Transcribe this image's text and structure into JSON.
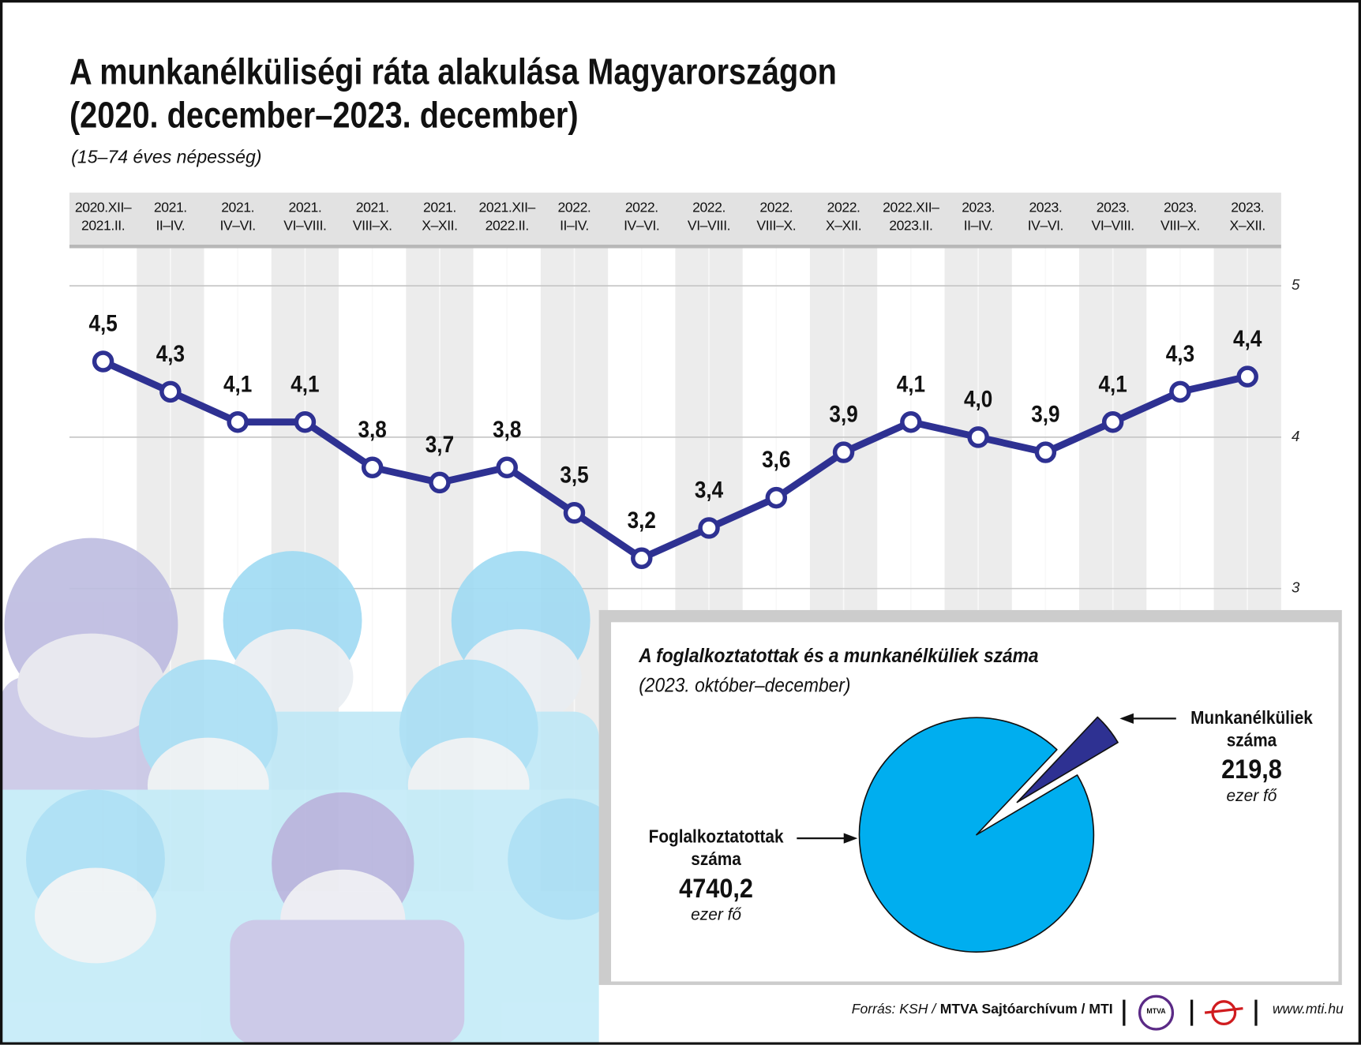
{
  "chart_data": [
    {
      "type": "line",
      "title": "A munkanélküliségi ráta alakulása Magyarországon\n(2020. december–2023. december)",
      "subtitle": "(15–74 éves népesség)",
      "categories": [
        "2020.XII–\n2021.II.",
        "2021.\nII–IV.",
        "2021.\nIV–VI.",
        "2021.\nVI–VIII.",
        "2021.\nVIII–X.",
        "2021.\nX–XII.",
        "2021.XII–\n2022.II.",
        "2022.\nII–IV.",
        "2022.\nIV–VI.",
        "2022.\nVI–VIII.",
        "2022.\nVIII–X.",
        "2022.\nX–XII.",
        "2022.XII–\n2023.II.",
        "2023.\nII–IV.",
        "2023.\nIV–VI.",
        "2023.\nVI–VIII.",
        "2023.\nVIII–X.",
        "2023.\nX–XII."
      ],
      "values": [
        4.5,
        4.3,
        4.1,
        4.1,
        3.8,
        3.7,
        3.8,
        3.5,
        3.2,
        3.4,
        3.6,
        3.9,
        4.1,
        4.0,
        3.9,
        4.1,
        4.3,
        4.4
      ],
      "value_labels": [
        "4,5",
        "4,3",
        "4,1",
        "4,1",
        "3,8",
        "3,7",
        "3,8",
        "3,5",
        "3,2",
        "3,4",
        "3,6",
        "3,9",
        "4,1",
        "4,0",
        "3,9",
        "4,1",
        "4,3",
        "4,4"
      ],
      "color": "#2e3192",
      "ylim": [
        1,
        5.26
      ],
      "yticks": [
        3,
        4,
        5
      ],
      "grid": true
    },
    {
      "type": "pie",
      "title": "A foglalkoztatottak és a munkanélküliek száma",
      "subtitle": "(2023. október–december)",
      "categories": [
        "Foglalkoztatottak száma",
        "Munkanélküliek száma"
      ],
      "values": [
        4740.2,
        219.8
      ],
      "value_labels": [
        "4740,2",
        "219,8"
      ],
      "unit": "ezer fő",
      "colors": [
        "#00aeef",
        "#2e3192"
      ]
    }
  ],
  "footer": {
    "source": "Forrás: KSH /",
    "publisher": "MTVA Sajtóarchívum / MTI",
    "logo": "MTVA",
    "website": "www.mti.hu"
  }
}
